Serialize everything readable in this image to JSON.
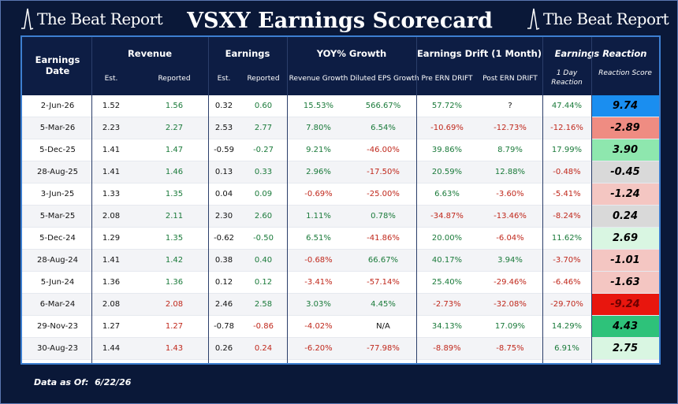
{
  "brand": "The Beat Report",
  "title": "VSXY Earnings Scorecard",
  "headers": {
    "date": "Earnings Date",
    "revenue": "Revenue",
    "earnings": "Earnings",
    "yoy": "YOY% Growth",
    "drift": "Earnings Drift (1 Month)",
    "reaction": "Earnings Reaction",
    "est": "Est.",
    "reported": "Reported",
    "rev_growth": "Revenue Growth",
    "eps_growth": "Diluted EPS Growth",
    "pre_drift": "Pre ERN DRIFT",
    "post_drift": "Post ERN DRIFT",
    "one_day": "1 Day Reaction",
    "score": "Reaction Score"
  },
  "colors": {
    "positive_text": "#1a7a3a",
    "negative_text": "#c0281c",
    "header_bg": "#0d1d44",
    "border_accent": "#3d7fd0"
  },
  "rows": [
    {
      "date": "2-Jun-26",
      "rev_est": "1.52",
      "rev_rep": "1.56",
      "eps_est": "0.32",
      "eps_rep": "0.60",
      "rev_growth": "15.53%",
      "eps_growth": "566.67%",
      "pre": "57.72%",
      "post": "?",
      "one_day": "47.44%",
      "score": "9.74",
      "score_bg": "#1a8ef0",
      "score_color": "#000000"
    },
    {
      "date": "5-Mar-26",
      "rev_est": "2.23",
      "rev_rep": "2.27",
      "eps_est": "2.53",
      "eps_rep": "2.77",
      "rev_growth": "7.80%",
      "eps_growth": "6.54%",
      "pre": "-10.69%",
      "post": "-12.73%",
      "one_day": "-12.16%",
      "score": "-2.89",
      "score_bg": "#ef8c82",
      "score_color": "#000000"
    },
    {
      "date": "5-Dec-25",
      "rev_est": "1.41",
      "rev_rep": "1.47",
      "eps_est": "-0.59",
      "eps_rep": "-0.27",
      "rev_growth": "9.21%",
      "eps_growth": "-46.00%",
      "pre": "39.86%",
      "post": "8.79%",
      "one_day": "17.99%",
      "score": "3.90",
      "score_bg": "#8ee7ae",
      "score_color": "#000000"
    },
    {
      "date": "28-Aug-25",
      "rev_est": "1.41",
      "rev_rep": "1.46",
      "eps_est": "0.13",
      "eps_rep": "0.33",
      "rev_growth": "2.96%",
      "eps_growth": "-17.50%",
      "pre": "20.59%",
      "post": "12.88%",
      "one_day": "-0.48%",
      "score": "-0.45",
      "score_bg": "#d9d9d9",
      "score_color": "#000000"
    },
    {
      "date": "3-Jun-25",
      "rev_est": "1.33",
      "rev_rep": "1.35",
      "eps_est": "0.04",
      "eps_rep": "0.09",
      "rev_growth": "-0.69%",
      "eps_growth": "-25.00%",
      "pre": "6.63%",
      "post": "-3.60%",
      "one_day": "-5.41%",
      "score": "-1.24",
      "score_bg": "#f4c6c2",
      "score_color": "#000000"
    },
    {
      "date": "5-Mar-25",
      "rev_est": "2.08",
      "rev_rep": "2.11",
      "eps_est": "2.30",
      "eps_rep": "2.60",
      "rev_growth": "1.11%",
      "eps_growth": "0.78%",
      "pre": "-34.87%",
      "post": "-13.46%",
      "one_day": "-8.24%",
      "score": "0.24",
      "score_bg": "#d9d9d9",
      "score_color": "#000000"
    },
    {
      "date": "5-Dec-24",
      "rev_est": "1.29",
      "rev_rep": "1.35",
      "eps_est": "-0.62",
      "eps_rep": "-0.50",
      "rev_growth": "6.51%",
      "eps_growth": "-41.86%",
      "pre": "20.00%",
      "post": "-6.04%",
      "one_day": "11.62%",
      "score": "2.69",
      "score_bg": "#d9f6e2",
      "score_color": "#000000"
    },
    {
      "date": "28-Aug-24",
      "rev_est": "1.41",
      "rev_rep": "1.42",
      "eps_est": "0.38",
      "eps_rep": "0.40",
      "rev_growth": "-0.68%",
      "eps_growth": "66.67%",
      "pre": "40.17%",
      "post": "3.94%",
      "one_day": "-3.70%",
      "score": "-1.01",
      "score_bg": "#f4c6c2",
      "score_color": "#000000"
    },
    {
      "date": "5-Jun-24",
      "rev_est": "1.36",
      "rev_rep": "1.36",
      "eps_est": "0.12",
      "eps_rep": "0.12",
      "rev_growth": "-3.41%",
      "eps_growth": "-57.14%",
      "pre": "25.40%",
      "post": "-29.46%",
      "one_day": "-6.46%",
      "score": "-1.63",
      "score_bg": "#f4c6c2",
      "score_color": "#000000"
    },
    {
      "date": "6-Mar-24",
      "rev_est": "2.08",
      "rev_rep": "2.08",
      "eps_est": "2.46",
      "eps_rep": "2.58",
      "rev_growth": "3.03%",
      "eps_growth": "4.45%",
      "pre": "-2.73%",
      "post": "-32.08%",
      "one_day": "-29.70%",
      "score": "-9.24",
      "score_bg": "#e8160e",
      "score_color": "#6b0000"
    },
    {
      "date": "29-Nov-23",
      "rev_est": "1.27",
      "rev_rep": "1.27",
      "eps_est": "-0.78",
      "eps_rep": "-0.86",
      "rev_growth": "-4.02%",
      "eps_growth": "N/A",
      "pre": "34.13%",
      "post": "17.09%",
      "one_day": "14.29%",
      "score": "4.43",
      "score_bg": "#2ec27a",
      "score_color": "#000000"
    },
    {
      "date": "30-Aug-23",
      "rev_est": "1.44",
      "rev_rep": "1.43",
      "eps_est": "0.26",
      "eps_rep": "0.24",
      "rev_growth": "-6.20%",
      "eps_growth": "-77.98%",
      "pre": "-8.89%",
      "post": "-8.75%",
      "one_day": "6.91%",
      "score": "2.75",
      "score_bg": "#d9f6e2",
      "score_color": "#000000"
    }
  ],
  "footer": {
    "label": "Data as Of:",
    "date": "6/22/26"
  }
}
